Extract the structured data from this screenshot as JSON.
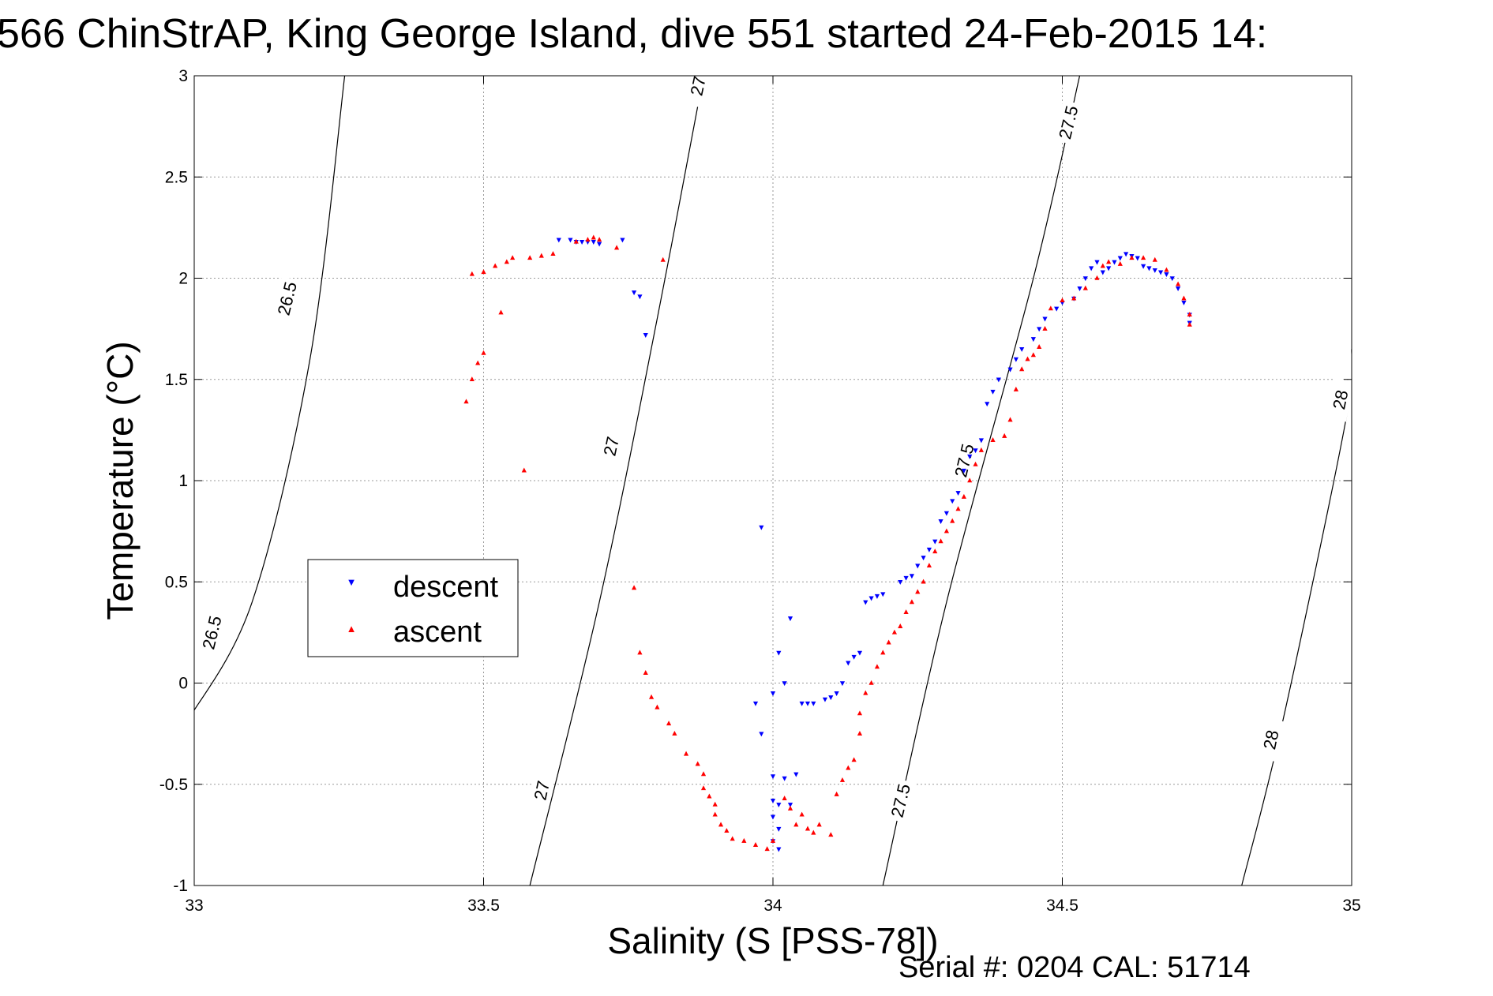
{
  "chart_data": {
    "type": "scatter",
    "title": "566 ChinStrAP, King George Island, dive 551 started 24-Feb-2015 14:",
    "xlabel": "Salinity (S [PSS-78])",
    "ylabel": "Temperature (°C)",
    "xlim": [
      33,
      35
    ],
    "ylim": [
      -1,
      3
    ],
    "xticks": [
      33,
      33.5,
      34,
      34.5,
      35
    ],
    "yticks": [
      -1,
      -0.5,
      0,
      0.5,
      1,
      1.5,
      2,
      2.5,
      3
    ],
    "xtick_labels": [
      "33",
      "33.5",
      "34",
      "34.5",
      "35"
    ],
    "ytick_labels": [
      "-1",
      "-0.5",
      "0",
      "0.5",
      "1",
      "1.5",
      "2",
      "2.5",
      "3"
    ],
    "grid": true,
    "legend_position": "middle-left",
    "footer": "Serial #: 0204  CAL: 51714",
    "colors": {
      "descent": "#0000ff",
      "ascent": "#ff0000",
      "contour": "#000000"
    },
    "contours": [
      {
        "value": "26.5",
        "points": [
          [
            32.99,
            -0.18
          ],
          [
            33.1,
            0.4
          ],
          [
            33.2,
            1.6
          ],
          [
            33.26,
            3.0
          ]
        ],
        "labels": [
          {
            "x": 33.03,
            "y": 0.25
          },
          {
            "x": 33.16,
            "y": 1.9
          }
        ]
      },
      {
        "value": "27",
        "points": [
          [
            33.58,
            -1.0
          ],
          [
            33.7,
            0.4
          ],
          [
            33.8,
            1.8
          ],
          [
            33.88,
            3.0
          ]
        ],
        "labels": [
          {
            "x": 33.6,
            "y": -0.53
          },
          {
            "x": 33.72,
            "y": 1.17
          },
          {
            "x": 33.87,
            "y": 2.95
          }
        ]
      },
      {
        "value": "27.5",
        "points": [
          [
            34.19,
            -1.0
          ],
          [
            34.3,
            0.4
          ],
          [
            34.45,
            2.0
          ],
          [
            34.53,
            3.0
          ]
        ],
        "labels": [
          {
            "x": 34.22,
            "y": -0.58
          },
          {
            "x": 34.33,
            "y": 1.1
          },
          {
            "x": 34.51,
            "y": 2.77
          }
        ]
      },
      {
        "value": "28",
        "points": [
          [
            34.81,
            -1.0
          ],
          [
            34.88,
            -0.2
          ],
          [
            34.99,
            1.3
          ],
          [
            35.0,
            1.65
          ]
        ],
        "labels": [
          {
            "x": 34.86,
            "y": -0.28
          },
          {
            "x": 34.98,
            "y": 1.4
          }
        ]
      }
    ],
    "series": [
      {
        "name": "descent",
        "points": [
          [
            33.63,
            2.19
          ],
          [
            33.65,
            2.19
          ],
          [
            33.66,
            2.18
          ],
          [
            33.67,
            2.18
          ],
          [
            33.68,
            2.18
          ],
          [
            33.69,
            2.18
          ],
          [
            33.7,
            2.17
          ],
          [
            33.74,
            2.19
          ],
          [
            33.76,
            1.93
          ],
          [
            33.77,
            1.91
          ],
          [
            33.78,
            1.72
          ],
          [
            33.98,
            0.77
          ],
          [
            33.97,
            -0.1
          ],
          [
            33.98,
            -0.25
          ],
          [
            34.0,
            -0.05
          ],
          [
            34.01,
            0.15
          ],
          [
            34.02,
            0.0
          ],
          [
            34.03,
            0.32
          ],
          [
            34.0,
            -0.46
          ],
          [
            34.0,
            -0.58
          ],
          [
            34.01,
            -0.6
          ],
          [
            34.0,
            -0.66
          ],
          [
            34.01,
            -0.72
          ],
          [
            34.0,
            -0.78
          ],
          [
            34.01,
            -0.82
          ],
          [
            34.02,
            -0.47
          ],
          [
            34.03,
            -0.6
          ],
          [
            34.04,
            -0.45
          ],
          [
            34.05,
            -0.1
          ],
          [
            34.06,
            -0.1
          ],
          [
            34.07,
            -0.1
          ],
          [
            34.09,
            -0.08
          ],
          [
            34.1,
            -0.07
          ],
          [
            34.11,
            -0.05
          ],
          [
            34.12,
            0.0
          ],
          [
            34.13,
            0.1
          ],
          [
            34.14,
            0.13
          ],
          [
            34.15,
            0.15
          ],
          [
            34.16,
            0.4
          ],
          [
            34.17,
            0.42
          ],
          [
            34.18,
            0.43
          ],
          [
            34.19,
            0.44
          ],
          [
            34.22,
            0.5
          ],
          [
            34.23,
            0.52
          ],
          [
            34.24,
            0.53
          ],
          [
            34.25,
            0.58
          ],
          [
            34.26,
            0.62
          ],
          [
            34.27,
            0.66
          ],
          [
            34.28,
            0.7
          ],
          [
            34.29,
            0.8
          ],
          [
            34.3,
            0.84
          ],
          [
            34.31,
            0.9
          ],
          [
            34.32,
            0.94
          ],
          [
            34.33,
            1.05
          ],
          [
            34.34,
            1.12
          ],
          [
            34.35,
            1.15
          ],
          [
            34.36,
            1.2
          ],
          [
            34.37,
            1.38
          ],
          [
            34.38,
            1.44
          ],
          [
            34.39,
            1.5
          ],
          [
            34.41,
            1.55
          ],
          [
            34.42,
            1.6
          ],
          [
            34.43,
            1.65
          ],
          [
            34.45,
            1.7
          ],
          [
            34.46,
            1.75
          ],
          [
            34.47,
            1.8
          ],
          [
            34.49,
            1.85
          ],
          [
            34.5,
            1.88
          ],
          [
            34.52,
            1.9
          ],
          [
            34.53,
            1.95
          ],
          [
            34.54,
            2.0
          ],
          [
            34.55,
            2.05
          ],
          [
            34.56,
            2.08
          ],
          [
            34.57,
            2.03
          ],
          [
            34.58,
            2.05
          ],
          [
            34.59,
            2.08
          ],
          [
            34.6,
            2.1
          ],
          [
            34.61,
            2.12
          ],
          [
            34.62,
            2.11
          ],
          [
            34.63,
            2.1
          ],
          [
            34.64,
            2.06
          ],
          [
            34.65,
            2.05
          ],
          [
            34.66,
            2.04
          ],
          [
            34.67,
            2.03
          ],
          [
            34.68,
            2.02
          ],
          [
            34.69,
            2.0
          ],
          [
            34.7,
            1.95
          ],
          [
            34.71,
            1.88
          ],
          [
            34.72,
            1.82
          ],
          [
            34.72,
            1.78
          ]
        ]
      },
      {
        "name": "ascent",
        "points": [
          [
            33.47,
            1.39
          ],
          [
            33.48,
            1.5
          ],
          [
            33.49,
            1.58
          ],
          [
            33.5,
            1.63
          ],
          [
            33.48,
            2.02
          ],
          [
            33.5,
            2.03
          ],
          [
            33.52,
            2.06
          ],
          [
            33.54,
            2.08
          ],
          [
            33.55,
            2.1
          ],
          [
            33.57,
            1.05
          ],
          [
            33.53,
            1.83
          ],
          [
            33.58,
            2.1
          ],
          [
            33.6,
            2.11
          ],
          [
            33.62,
            2.12
          ],
          [
            33.66,
            2.18
          ],
          [
            33.68,
            2.19
          ],
          [
            33.69,
            2.2
          ],
          [
            33.7,
            2.19
          ],
          [
            33.73,
            2.15
          ],
          [
            33.81,
            2.09
          ],
          [
            33.76,
            0.47
          ],
          [
            33.77,
            0.15
          ],
          [
            33.78,
            0.05
          ],
          [
            33.79,
            -0.07
          ],
          [
            33.8,
            -0.12
          ],
          [
            33.82,
            -0.2
          ],
          [
            33.83,
            -0.25
          ],
          [
            33.85,
            -0.35
          ],
          [
            33.87,
            -0.4
          ],
          [
            33.88,
            -0.45
          ],
          [
            33.88,
            -0.52
          ],
          [
            33.89,
            -0.56
          ],
          [
            33.9,
            -0.6
          ],
          [
            33.9,
            -0.65
          ],
          [
            33.91,
            -0.7
          ],
          [
            33.92,
            -0.73
          ],
          [
            33.93,
            -0.77
          ],
          [
            33.95,
            -0.78
          ],
          [
            33.97,
            -0.8
          ],
          [
            33.99,
            -0.82
          ],
          [
            34.0,
            -0.78
          ],
          [
            34.02,
            -0.57
          ],
          [
            34.03,
            -0.62
          ],
          [
            34.04,
            -0.7
          ],
          [
            34.05,
            -0.65
          ],
          [
            34.06,
            -0.72
          ],
          [
            34.07,
            -0.74
          ],
          [
            34.08,
            -0.7
          ],
          [
            34.1,
            -0.75
          ],
          [
            34.11,
            -0.55
          ],
          [
            34.12,
            -0.48
          ],
          [
            34.13,
            -0.42
          ],
          [
            34.14,
            -0.38
          ],
          [
            34.15,
            -0.25
          ],
          [
            34.15,
            -0.15
          ],
          [
            34.16,
            -0.05
          ],
          [
            34.17,
            0.0
          ],
          [
            34.18,
            0.08
          ],
          [
            34.19,
            0.15
          ],
          [
            34.2,
            0.2
          ],
          [
            34.21,
            0.25
          ],
          [
            34.22,
            0.28
          ],
          [
            34.23,
            0.35
          ],
          [
            34.24,
            0.4
          ],
          [
            34.25,
            0.45
          ],
          [
            34.26,
            0.5
          ],
          [
            34.27,
            0.58
          ],
          [
            34.28,
            0.65
          ],
          [
            34.29,
            0.7
          ],
          [
            34.3,
            0.75
          ],
          [
            34.31,
            0.8
          ],
          [
            34.32,
            0.86
          ],
          [
            34.33,
            0.92
          ],
          [
            34.34,
            1.0
          ],
          [
            34.35,
            1.08
          ],
          [
            34.36,
            1.15
          ],
          [
            34.38,
            1.2
          ],
          [
            34.4,
            1.22
          ],
          [
            34.41,
            1.3
          ],
          [
            34.42,
            1.45
          ],
          [
            34.43,
            1.55
          ],
          [
            34.44,
            1.6
          ],
          [
            34.45,
            1.62
          ],
          [
            34.46,
            1.66
          ],
          [
            34.47,
            1.75
          ],
          [
            34.48,
            1.85
          ],
          [
            34.5,
            1.89
          ],
          [
            34.52,
            1.9
          ],
          [
            34.54,
            1.95
          ],
          [
            34.56,
            2.0
          ],
          [
            34.57,
            2.06
          ],
          [
            34.58,
            2.08
          ],
          [
            34.6,
            2.07
          ],
          [
            34.62,
            2.1
          ],
          [
            34.64,
            2.1
          ],
          [
            34.66,
            2.09
          ],
          [
            34.68,
            2.04
          ],
          [
            34.7,
            1.97
          ],
          [
            34.71,
            1.9
          ],
          [
            34.72,
            1.82
          ],
          [
            34.72,
            1.77
          ]
        ]
      }
    ]
  }
}
